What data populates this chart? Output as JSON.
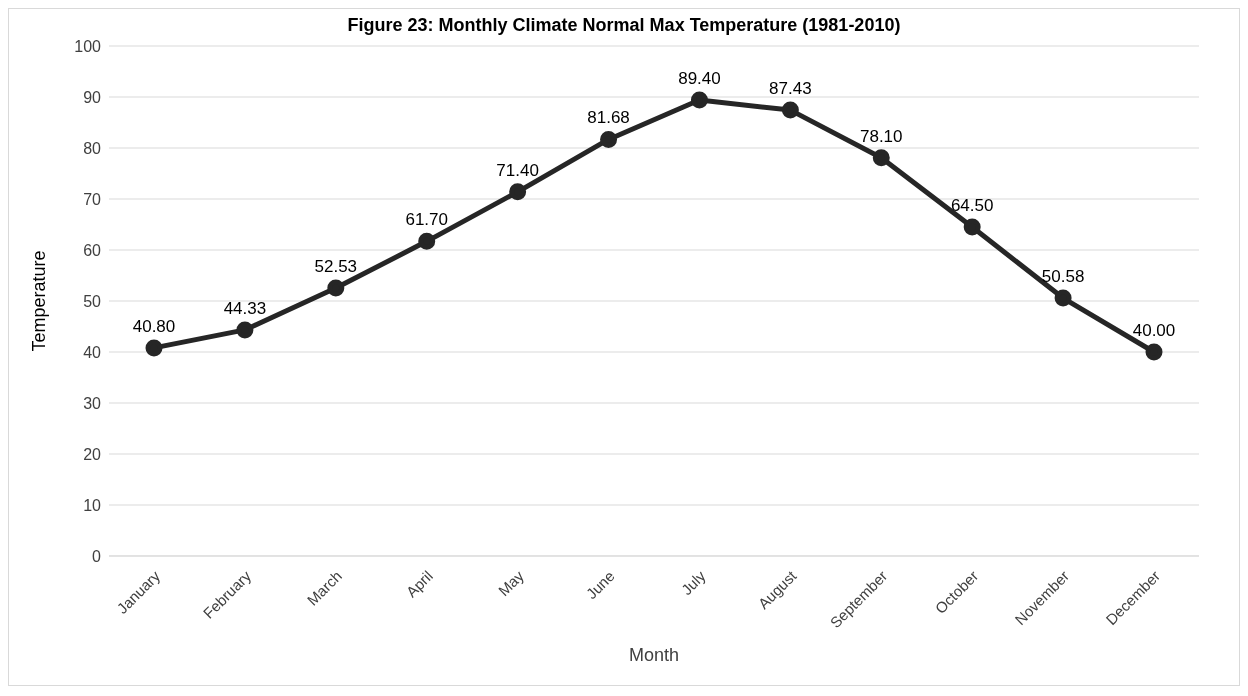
{
  "chart_data": {
    "type": "line",
    "title": "Figure 23: Monthly Climate Normal Max Temperature (1981-2010)",
    "xlabel": "Month",
    "ylabel": "Temperature",
    "categories": [
      "January",
      "February",
      "March",
      "April",
      "May",
      "June",
      "July",
      "August",
      "September",
      "October",
      "November",
      "December"
    ],
    "series": [
      {
        "color": "#262626",
        "values": [
          40.8,
          44.33,
          52.53,
          61.7,
          71.4,
          81.68,
          89.4,
          87.43,
          78.1,
          64.5,
          50.58,
          40.0
        ]
      }
    ],
    "value_labels": [
      "40.80",
      "44.33",
      "52.53",
      "61.70",
      "71.40",
      "81.68",
      "89.40",
      "87.43",
      "78.10",
      "64.50",
      "50.58",
      "40.00"
    ],
    "ylim": [
      0,
      100
    ],
    "yticks": [
      0,
      10,
      20,
      30,
      40,
      50,
      60,
      70,
      80,
      90,
      100
    ],
    "grid": "y",
    "marker": "circle",
    "line_style": "solid"
  }
}
